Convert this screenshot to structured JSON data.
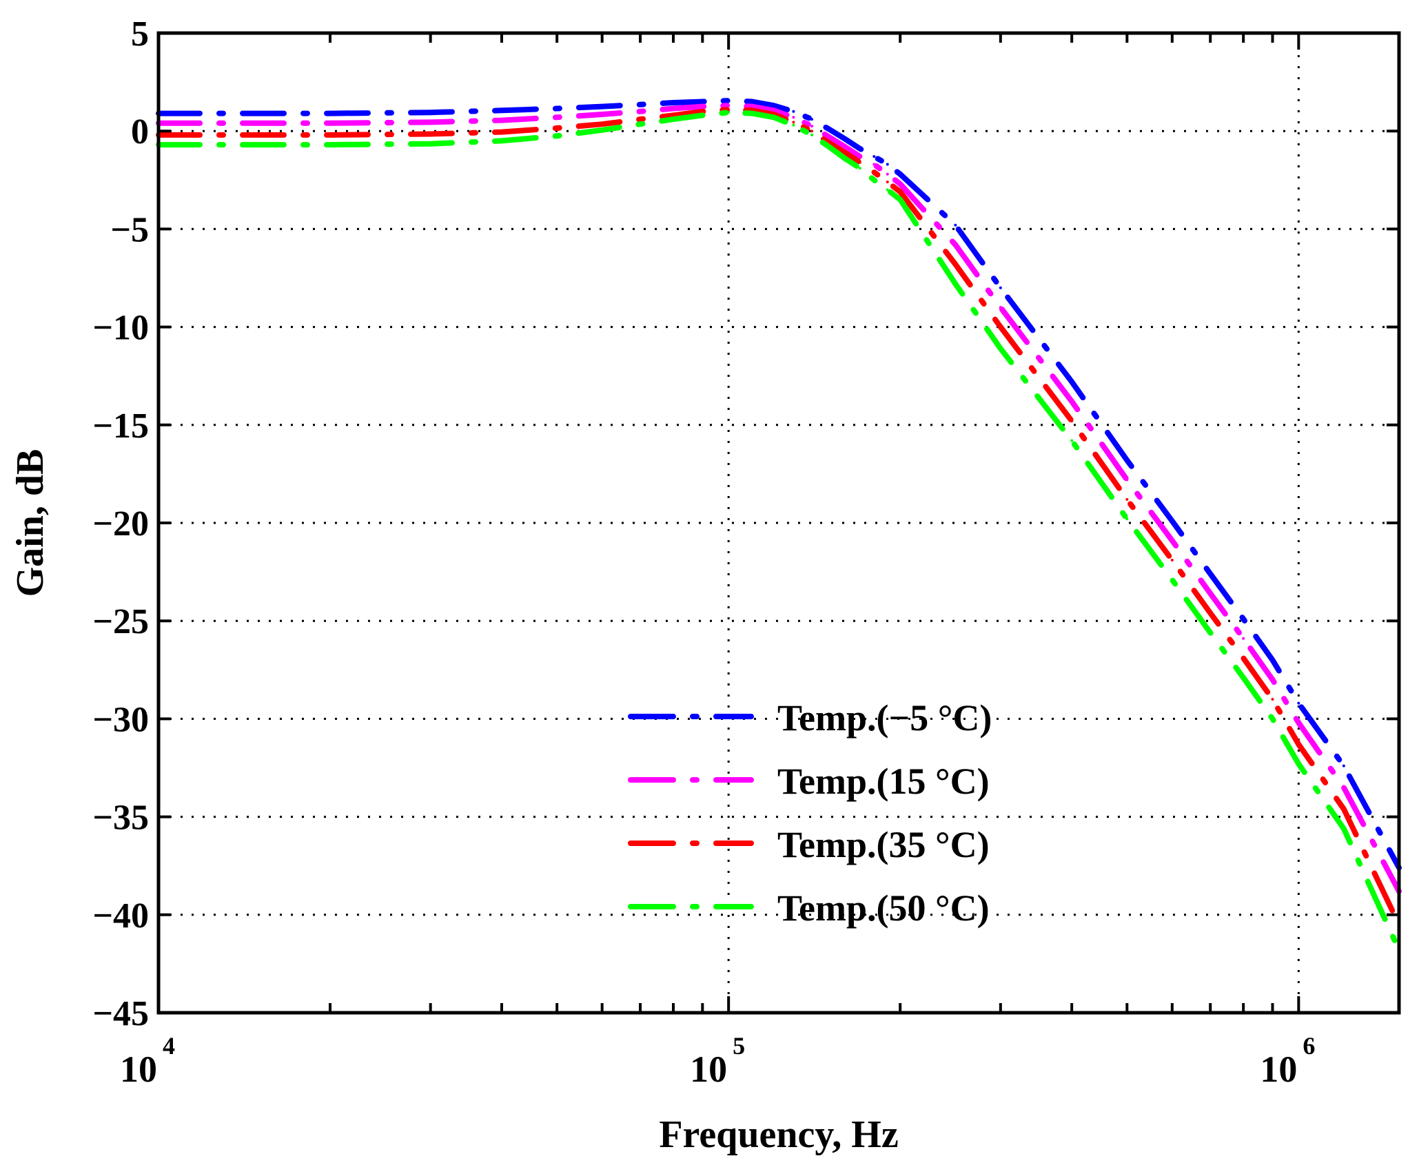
{
  "chart_data": {
    "type": "line",
    "title": "",
    "xlabel": "Frequency, Hz",
    "ylabel": "Gain, dB",
    "x_scale": "log",
    "xlim": [
      10000,
      1500000
    ],
    "ylim": [
      -45,
      5
    ],
    "x_ticks": [
      {
        "base": "10",
        "exp": "4",
        "value": 10000
      },
      {
        "base": "10",
        "exp": "5",
        "value": 100000
      },
      {
        "base": "10",
        "exp": "6",
        "value": 1000000
      }
    ],
    "y_ticks": [
      "5",
      "0",
      "−5",
      "−10",
      "−15",
      "−20",
      "−25",
      "−30",
      "−35",
      "−40",
      "−45"
    ],
    "y_tick_values": [
      5,
      0,
      -5,
      -10,
      -15,
      -20,
      -25,
      -30,
      -35,
      -40,
      -45
    ],
    "grid": true,
    "legend_position": "lower-center",
    "x": [
      10000,
      20000,
      30000,
      40000,
      50000,
      60000,
      70000,
      80000,
      90000,
      100000,
      110000,
      120000,
      130000,
      140000,
      150000,
      160000,
      170000,
      180000,
      190000,
      200000,
      250000,
      300000,
      400000,
      500000,
      600000,
      700000,
      800000,
      900000,
      1000000,
      1200000,
      1500000
    ],
    "series": [
      {
        "name": "Temp.(−5 °C)",
        "color": "#0000ff",
        "values": [
          0.9,
          0.9,
          0.95,
          1.05,
          1.15,
          1.25,
          1.35,
          1.45,
          1.5,
          1.55,
          1.5,
          1.3,
          1.0,
          0.6,
          0.1,
          -0.4,
          -0.9,
          -1.3,
          -1.7,
          -2.2,
          -4.8,
          -8.0,
          -12.8,
          -16.8,
          -19.9,
          -22.6,
          -24.9,
          -27.0,
          -29.2,
          -32.4,
          -37.6
        ]
      },
      {
        "name": "Temp.(15 °C)",
        "color": "#ff00ff",
        "values": [
          0.4,
          0.4,
          0.45,
          0.55,
          0.7,
          0.85,
          1.0,
          1.15,
          1.25,
          1.3,
          1.25,
          1.05,
          0.7,
          0.25,
          -0.3,
          -0.8,
          -1.3,
          -1.7,
          -2.2,
          -2.7,
          -5.8,
          -9.0,
          -13.8,
          -17.8,
          -20.9,
          -23.6,
          -25.9,
          -28.0,
          -30.2,
          -33.5,
          -38.8
        ]
      },
      {
        "name": "Temp.(35 °C)",
        "color": "#ff0000",
        "values": [
          -0.2,
          -0.2,
          -0.15,
          -0.05,
          0.15,
          0.35,
          0.6,
          0.8,
          1.0,
          1.1,
          1.05,
          0.85,
          0.45,
          0.0,
          -0.6,
          -1.1,
          -1.6,
          -2.1,
          -2.6,
          -3.1,
          -6.8,
          -10.0,
          -14.8,
          -18.8,
          -21.9,
          -24.6,
          -26.9,
          -29.0,
          -31.3,
          -34.6,
          -40.5
        ]
      },
      {
        "name": "Temp.(50 °C)",
        "color": "#00ff00",
        "values": [
          -0.7,
          -0.7,
          -0.65,
          -0.5,
          -0.25,
          0.05,
          0.35,
          0.6,
          0.8,
          0.95,
          0.9,
          0.7,
          0.3,
          -0.2,
          -0.8,
          -1.4,
          -1.9,
          -2.5,
          -3.0,
          -3.5,
          -7.8,
          -11.1,
          -15.8,
          -19.8,
          -22.9,
          -25.6,
          -27.9,
          -30.0,
          -32.3,
          -35.6,
          -41.8
        ]
      }
    ]
  }
}
